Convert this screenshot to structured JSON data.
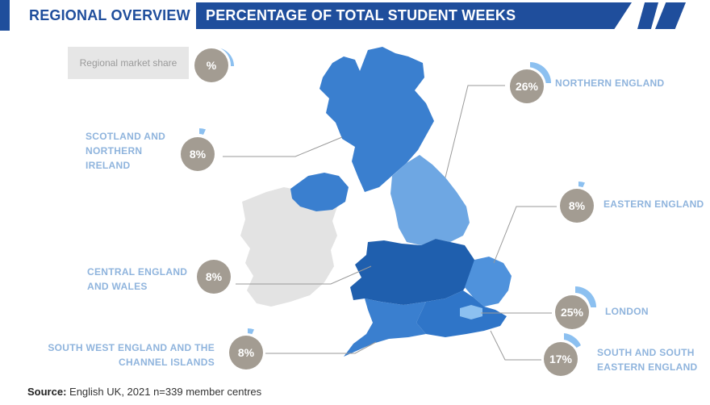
{
  "header": {
    "left_title": "REGIONAL OVERVIEW",
    "right_title": "PERCENTAGE OF TOTAL STUDENT WEEKS"
  },
  "legend": {
    "label": "Regional market share",
    "symbol": "%"
  },
  "regions": [
    {
      "id": "northern-england",
      "label": "NORTHERN ENGLAND",
      "value": "26%",
      "share": 0.26,
      "color": "#6ea7e3"
    },
    {
      "id": "scotland-ni",
      "label": "SCOTLAND AND NORTHERN IRELAND",
      "value": "8%",
      "share": 0.08,
      "color": "#3a7fcf"
    },
    {
      "id": "eastern-england",
      "label": "EASTERN ENGLAND",
      "value": "8%",
      "share": 0.08,
      "color": "#4f92dc"
    },
    {
      "id": "central-england-wales",
      "label": "CENTRAL ENGLAND AND WALES",
      "value": "8%",
      "share": 0.08,
      "color": "#1f5fae"
    },
    {
      "id": "london",
      "label": "LONDON",
      "value": "25%",
      "share": 0.25,
      "color": "#8cc0f0"
    },
    {
      "id": "south-west-channel",
      "label": "SOUTH WEST ENGLAND AND THE CHANNEL ISLANDS",
      "value": "8%",
      "share": 0.08,
      "color": "#3a7fcf"
    },
    {
      "id": "south-southeast",
      "label": "SOUTH AND SOUTH EASTERN ENGLAND",
      "value": "17%",
      "share": 0.17,
      "color": "#2f75c8"
    }
  ],
  "labels": {
    "northern": "NORTHERN ENGLAND",
    "scotland_l1": "SCOTLAND AND",
    "scotland_l2": "NORTHERN",
    "scotland_l3": "IRELAND",
    "eastern": "EASTERN ENGLAND",
    "central_l1": "CENTRAL ENGLAND",
    "central_l2": "AND WALES",
    "london": "LONDON",
    "sw_l1": "SOUTH WEST ENGLAND AND THE",
    "sw_l2": "CHANNEL ISLANDS",
    "sse_l1": "SOUTH AND SOUTH",
    "sse_l2": "EASTERN ENGLAND"
  },
  "values": {
    "northern": "26%",
    "scotland": "8%",
    "eastern": "8%",
    "central": "8%",
    "london": "25%",
    "sw": "8%",
    "sse": "17%"
  },
  "source": {
    "prefix": "Source:",
    "text": " English UK, 2021 n=339 member centres"
  },
  "colors": {
    "brand_blue": "#1f4e9c",
    "label_blue": "#8fb4dd",
    "circle_grey": "#a39c92",
    "ireland_grey": "#e3e3e3",
    "arc_blue": "#8cc0f0"
  }
}
